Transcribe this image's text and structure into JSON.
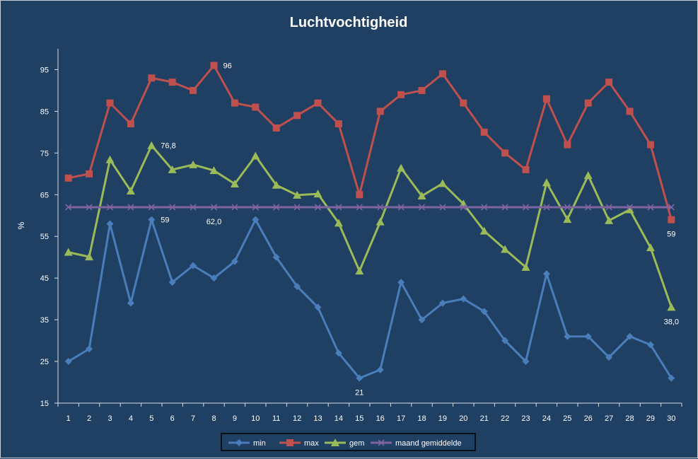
{
  "chart_data": {
    "type": "line",
    "title": "Luchtvochtigheid",
    "ylabel": "%",
    "xlabel": "",
    "categories": [
      "1",
      "2",
      "3",
      "4",
      "5",
      "6",
      "7",
      "8",
      "9",
      "10",
      "11",
      "12",
      "13",
      "14",
      "15",
      "16",
      "17",
      "18",
      "19",
      "20",
      "21",
      "22",
      "23",
      "24",
      "25",
      "26",
      "27",
      "28",
      "29",
      "30"
    ],
    "ylim": [
      15,
      100
    ],
    "yticks": [
      15,
      25,
      35,
      45,
      55,
      65,
      75,
      85,
      95
    ],
    "grid": false,
    "legend_position": "bottom",
    "series": [
      {
        "name": "min",
        "color": "#4a7ebb",
        "marker": "diamond",
        "values": [
          25,
          28,
          58,
          39,
          59,
          44,
          48,
          45,
          49,
          59,
          50,
          43,
          38,
          27,
          21,
          23,
          44,
          35,
          39,
          40,
          37,
          30,
          25,
          46,
          31,
          31,
          26,
          31,
          29,
          21
        ]
      },
      {
        "name": "max",
        "color": "#c0504d",
        "marker": "square",
        "values": [
          69,
          70,
          87,
          82,
          93,
          92,
          90,
          96,
          87,
          86,
          81,
          84,
          87,
          82,
          65,
          85,
          89,
          90,
          94,
          87,
          80,
          75,
          71,
          88,
          77,
          87,
          92,
          85,
          77,
          59
        ]
      },
      {
        "name": "gem",
        "color": "#9bbb59",
        "marker": "triangle",
        "values": [
          51.2,
          50.1,
          73.4,
          65.9,
          76.8,
          71.0,
          72.2,
          70.8,
          67.6,
          74.3,
          67.3,
          64.9,
          65.2,
          58.2,
          46.7,
          58.5,
          71.4,
          64.7,
          67.7,
          62.8,
          56.3,
          51.9,
          47.6,
          67.9,
          59.1,
          69.6,
          58.8,
          61.4,
          52.3,
          38.0
        ]
      },
      {
        "name": "maand gemiddelde",
        "color": "#8064a2",
        "marker": "x",
        "values": [
          62.0,
          62.0,
          62.0,
          62.0,
          62.0,
          62.0,
          62.0,
          62.0,
          62.0,
          62.0,
          62.0,
          62.0,
          62.0,
          62.0,
          62.0,
          62.0,
          62.0,
          62.0,
          62.0,
          62.0,
          62.0,
          62.0,
          62.0,
          62.0,
          62.0,
          62.0,
          62.0,
          62.0,
          62.0,
          62.0
        ]
      }
    ],
    "annotations": [
      {
        "series": 1,
        "index": 7,
        "text": "96",
        "anchor": "right"
      },
      {
        "series": 2,
        "index": 4,
        "text": "76,8",
        "anchor": "right"
      },
      {
        "series": 0,
        "index": 4,
        "text": "59",
        "anchor": "right"
      },
      {
        "series": 3,
        "index": 7,
        "text": "62,0",
        "anchor": "below"
      },
      {
        "series": 1,
        "index": 29,
        "text": "59",
        "anchor": "below"
      },
      {
        "series": 2,
        "index": 29,
        "text": "38,0",
        "anchor": "below"
      },
      {
        "series": 0,
        "index": 14,
        "text": "21",
        "anchor": "below"
      }
    ]
  }
}
